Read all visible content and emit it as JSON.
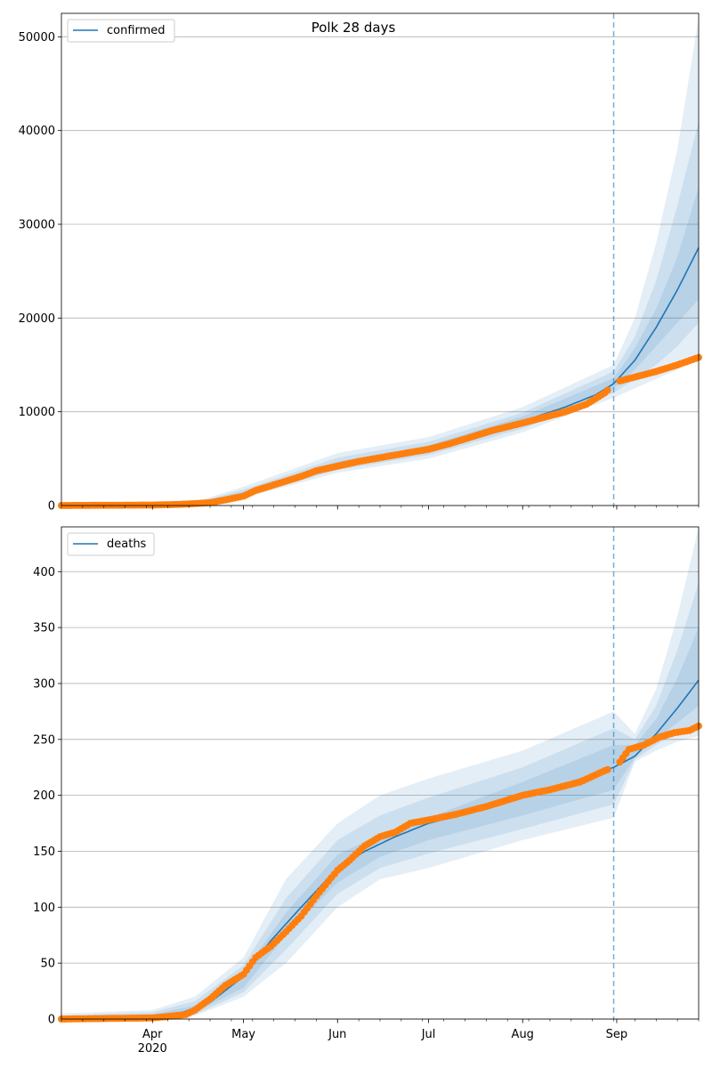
{
  "title": "Polk 28 days",
  "chart_data": [
    {
      "type": "line",
      "legend": "confirmed",
      "legend_position": "top-left",
      "grid": "horizontal",
      "x_range": [
        "2020-03-02",
        "2020-09-28"
      ],
      "ylim": [
        0,
        52500
      ],
      "yticks": [
        0,
        10000,
        20000,
        30000,
        40000,
        50000
      ],
      "ytick_labels": [
        "0",
        "10000",
        "20000",
        "30000",
        "40000",
        "50000"
      ],
      "forecast_start": "2020-08-31",
      "model_median": {
        "x": [
          "2020-03-02",
          "2020-03-20",
          "2020-04-05",
          "2020-04-15",
          "2020-04-25",
          "2020-05-01",
          "2020-05-10",
          "2020-05-20",
          "2020-06-01",
          "2020-06-15",
          "2020-07-01",
          "2020-07-15",
          "2020-08-01",
          "2020-08-15",
          "2020-08-25",
          "2020-08-31",
          "2020-09-07",
          "2020-09-14",
          "2020-09-21",
          "2020-09-28"
        ],
        "y": [
          0,
          50,
          100,
          200,
          500,
          1200,
          2200,
          3300,
          4300,
          5100,
          6000,
          7300,
          9000,
          10500,
          11800,
          13000,
          15500,
          19000,
          23000,
          27500
        ]
      },
      "bands": [
        {
          "x": [
            "2020-03-02",
            "2020-04-15",
            "2020-05-01",
            "2020-06-01",
            "2020-07-01",
            "2020-08-01",
            "2020-08-31",
            "2020-09-07",
            "2020-09-14",
            "2020-09-21",
            "2020-09-28"
          ],
          "lower": [
            0,
            100,
            800,
            3500,
            5000,
            7800,
            11500,
            12500,
            13500,
            14500,
            16000
          ],
          "upper": [
            0,
            400,
            2000,
            5600,
            7300,
            10500,
            15000,
            20000,
            28000,
            38000,
            52000
          ]
        },
        {
          "x": [
            "2020-03-02",
            "2020-04-15",
            "2020-05-01",
            "2020-06-01",
            "2020-07-01",
            "2020-08-01",
            "2020-08-31",
            "2020-09-07",
            "2020-09-14",
            "2020-09-21",
            "2020-09-28"
          ],
          "lower": [
            0,
            120,
            950,
            3800,
            5400,
            8200,
            12000,
            13500,
            15000,
            17000,
            19500
          ],
          "upper": [
            0,
            320,
            1700,
            5100,
            6800,
            9900,
            14300,
            18000,
            24000,
            32000,
            41000
          ]
        },
        {
          "x": [
            "2020-03-02",
            "2020-04-15",
            "2020-05-01",
            "2020-06-01",
            "2020-07-01",
            "2020-08-01",
            "2020-08-31",
            "2020-09-07",
            "2020-09-14",
            "2020-09-21",
            "2020-09-28"
          ],
          "lower": [
            0,
            150,
            1050,
            4000,
            5700,
            8500,
            12500,
            14500,
            17000,
            19500,
            22000
          ],
          "upper": [
            0,
            260,
            1450,
            4700,
            6400,
            9500,
            13600,
            16800,
            21000,
            26500,
            34000
          ]
        }
      ],
      "observed": {
        "x": [
          "2020-03-02",
          "2020-03-15",
          "2020-04-01",
          "2020-04-10",
          "2020-04-20",
          "2020-04-25",
          "2020-05-01",
          "2020-05-05",
          "2020-05-10",
          "2020-05-15",
          "2020-05-20",
          "2020-05-25",
          "2020-06-01",
          "2020-06-08",
          "2020-06-15",
          "2020-06-22",
          "2020-07-01",
          "2020-07-08",
          "2020-07-15",
          "2020-07-22",
          "2020-08-01",
          "2020-08-08",
          "2020-08-15",
          "2020-08-22",
          "2020-08-28",
          "2020-09-01",
          "2020-09-07",
          "2020-09-14",
          "2020-09-21",
          "2020-09-28"
        ],
        "y": [
          0,
          20,
          50,
          120,
          300,
          600,
          1000,
          1600,
          2100,
          2600,
          3100,
          3700,
          4200,
          4700,
          5100,
          5500,
          6000,
          6600,
          7300,
          8000,
          8800,
          9400,
          10000,
          10800,
          12000,
          13200,
          13700,
          14300,
          15000,
          15800
        ]
      }
    },
    {
      "type": "line",
      "legend": "deaths",
      "legend_position": "top-left",
      "grid": "horizontal",
      "x_range": [
        "2020-03-02",
        "2020-09-28"
      ],
      "xticks": [
        "2020-04-01",
        "2020-05-01",
        "2020-06-01",
        "2020-07-01",
        "2020-08-01",
        "2020-09-01"
      ],
      "xtick_labels": [
        "Apr",
        "May",
        "Jun",
        "Jul",
        "Aug",
        "Sep"
      ],
      "x_year_label": "2020",
      "ylim": [
        0,
        440
      ],
      "yticks": [
        0,
        50,
        100,
        150,
        200,
        250,
        300,
        350,
        400
      ],
      "ytick_labels": [
        "0",
        "50",
        "100",
        "150",
        "200",
        "250",
        "300",
        "350",
        "400"
      ],
      "forecast_start": "2020-08-31",
      "model_median": {
        "x": [
          "2020-03-02",
          "2020-04-01",
          "2020-04-10",
          "2020-04-20",
          "2020-05-01",
          "2020-05-10",
          "2020-05-20",
          "2020-06-01",
          "2020-06-10",
          "2020-06-20",
          "2020-07-01",
          "2020-07-15",
          "2020-08-01",
          "2020-08-15",
          "2020-08-31",
          "2020-09-07",
          "2020-09-14",
          "2020-09-21",
          "2020-09-28"
        ],
        "y": [
          0,
          1,
          5,
          15,
          38,
          70,
          100,
          135,
          150,
          163,
          175,
          185,
          198,
          210,
          225,
          235,
          255,
          278,
          303
        ]
      },
      "bands": [
        {
          "x": [
            "2020-03-02",
            "2020-04-01",
            "2020-04-15",
            "2020-05-01",
            "2020-05-15",
            "2020-06-01",
            "2020-06-15",
            "2020-07-01",
            "2020-08-01",
            "2020-08-31",
            "2020-09-07",
            "2020-09-14",
            "2020-09-21",
            "2020-09-28"
          ],
          "lower": [
            0,
            0,
            3,
            20,
            50,
            100,
            125,
            135,
            160,
            180,
            230,
            240,
            248,
            253
          ],
          "upper": [
            5,
            8,
            20,
            55,
            125,
            175,
            200,
            215,
            240,
            275,
            255,
            295,
            360,
            440
          ]
        },
        {
          "x": [
            "2020-03-02",
            "2020-04-01",
            "2020-04-15",
            "2020-05-01",
            "2020-05-15",
            "2020-06-01",
            "2020-06-15",
            "2020-07-01",
            "2020-08-01",
            "2020-08-31",
            "2020-09-07",
            "2020-09-14",
            "2020-09-21",
            "2020-09-28"
          ],
          "lower": [
            0,
            0,
            4,
            24,
            62,
            112,
            135,
            148,
            170,
            192,
            232,
            245,
            256,
            265
          ],
          "upper": [
            3,
            6,
            16,
            48,
            108,
            160,
            182,
            198,
            225,
            260,
            250,
            280,
            330,
            390
          ]
        },
        {
          "x": [
            "2020-03-02",
            "2020-04-01",
            "2020-04-15",
            "2020-05-01",
            "2020-05-15",
            "2020-06-01",
            "2020-06-15",
            "2020-07-01",
            "2020-08-01",
            "2020-08-31",
            "2020-09-07",
            "2020-09-14",
            "2020-09-21",
            "2020-09-28"
          ],
          "lower": [
            0,
            0,
            6,
            28,
            75,
            122,
            145,
            160,
            182,
            205,
            234,
            250,
            265,
            280
          ],
          "upper": [
            2,
            4,
            12,
            42,
            95,
            147,
            165,
            180,
            212,
            245,
            245,
            268,
            305,
            350
          ]
        }
      ],
      "observed": {
        "x": [
          "2020-03-02",
          "2020-04-01",
          "2020-04-05",
          "2020-04-12",
          "2020-04-15",
          "2020-04-20",
          "2020-04-25",
          "2020-05-01",
          "2020-05-05",
          "2020-05-10",
          "2020-05-15",
          "2020-05-20",
          "2020-05-25",
          "2020-06-01",
          "2020-06-05",
          "2020-06-10",
          "2020-06-15",
          "2020-06-20",
          "2020-06-25",
          "2020-07-01",
          "2020-07-10",
          "2020-07-20",
          "2020-08-01",
          "2020-08-10",
          "2020-08-20",
          "2020-08-28",
          "2020-09-01",
          "2020-09-05",
          "2020-09-10",
          "2020-09-15",
          "2020-09-20",
          "2020-09-25",
          "2020-09-28"
        ],
        "y": [
          0,
          1,
          2,
          4,
          8,
          18,
          30,
          40,
          55,
          65,
          78,
          92,
          110,
          133,
          142,
          155,
          163,
          167,
          175,
          178,
          183,
          190,
          200,
          205,
          212,
          222,
          226,
          241,
          245,
          252,
          256,
          258,
          262
        ]
      }
    }
  ]
}
